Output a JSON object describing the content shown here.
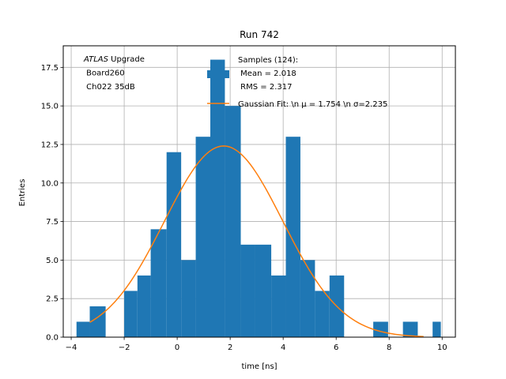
{
  "chart_data": {
    "type": "bar",
    "title": "Run 742",
    "xlabel": "time [ns]",
    "ylabel": "Entries",
    "xlim": [
      -4.3,
      10.5
    ],
    "ylim": [
      0,
      18.9
    ],
    "grid": true,
    "xticks": [
      -4,
      -2,
      0,
      2,
      4,
      6,
      8,
      10
    ],
    "xtick_labels": [
      "−4",
      "−2",
      "0",
      "2",
      "4",
      "6",
      "8",
      "10"
    ],
    "yticks": [
      0,
      2.5,
      5,
      7.5,
      10,
      12.5,
      15,
      17.5
    ],
    "ytick_labels": [
      "0.0",
      "2.5",
      "5.0",
      "7.5",
      "10.0",
      "12.5",
      "15.0",
      "17.5"
    ],
    "bin_edges": [
      -3.8,
      -3.24,
      -2.68,
      -2.12,
      -1.56,
      -1.0,
      -0.44,
      0.12,
      0.68,
      1.24,
      1.8,
      2.36,
      2.92,
      3.48,
      4.04,
      4.6,
      5.16,
      5.72,
      6.28,
      6.84,
      7.4,
      7.96,
      8.52,
      9.08,
      9.64
    ],
    "bins": [
      {
        "x0": -3.8,
        "x1": -3.3,
        "count": 1
      },
      {
        "x0": -3.3,
        "x1": -2.7,
        "count": 2
      },
      {
        "x0": -2.7,
        "x1": -2.0,
        "count": 0
      },
      {
        "x0": -2.0,
        "x1": -1.5,
        "count": 3
      },
      {
        "x0": -1.5,
        "x1": -1.0,
        "count": 4
      },
      {
        "x0": -1.0,
        "x1": -0.4,
        "count": 7
      },
      {
        "x0": -0.4,
        "x1": 0.15,
        "count": 12
      },
      {
        "x0": 0.15,
        "x1": 0.7,
        "count": 5
      },
      {
        "x0": 0.7,
        "x1": 1.25,
        "count": 13
      },
      {
        "x0": 1.25,
        "x1": 1.8,
        "count": 18
      },
      {
        "x0": 1.8,
        "x1": 2.4,
        "count": 15
      },
      {
        "x0": 2.4,
        "x1": 2.95,
        "count": 6
      },
      {
        "x0": 2.95,
        "x1": 3.55,
        "count": 6
      },
      {
        "x0": 3.55,
        "x1": 4.1,
        "count": 4
      },
      {
        "x0": 4.1,
        "x1": 4.65,
        "count": 13
      },
      {
        "x0": 4.65,
        "x1": 5.2,
        "count": 5
      },
      {
        "x0": 5.2,
        "x1": 5.75,
        "count": 3
      },
      {
        "x0": 5.75,
        "x1": 6.3,
        "count": 4
      },
      {
        "x0": 6.3,
        "x1": 7.4,
        "count": 0
      },
      {
        "x0": 7.4,
        "x1": 7.96,
        "count": 1
      },
      {
        "x0": 7.96,
        "x1": 8.52,
        "count": 0
      },
      {
        "x0": 8.52,
        "x1": 9.08,
        "count": 1
      },
      {
        "x0": 9.08,
        "x1": 9.64,
        "count": 0
      },
      {
        "x0": 9.64,
        "x1": 9.95,
        "count": 1
      }
    ],
    "series": [
      {
        "name": "Samples (124):\n Mean = 2.018\n RMS = 2.317",
        "kind": "histogram",
        "color": "#1f77b4"
      },
      {
        "name": "Gaussian Fit: \\n $\\mu$ = 1.754 \\n $\\sigma$=2.235",
        "kind": "line",
        "color": "#ff7f0e",
        "fit": {
          "mu": 1.754,
          "sigma": 2.235,
          "amplitude": 12.4,
          "x_start": -3.3,
          "x_end": 9.3
        }
      }
    ],
    "annotation_lines": [
      "ATLAS Upgrade",
      " Board260",
      " Ch022 35dB"
    ],
    "legend": {
      "placement": "top-right",
      "sample_lines": [
        "Samples (124):",
        " Mean = 2.018",
        " RMS = 2.317"
      ],
      "fit_label": "Gaussian Fit: \\n μ = 1.754 \\n σ=2.235"
    }
  }
}
